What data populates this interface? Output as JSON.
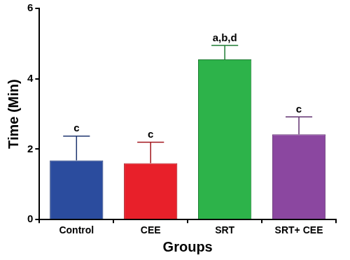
{
  "chart_data": {
    "type": "bar",
    "x_label": "Groups",
    "y_label": "Time (Min)",
    "categories": [
      "Control",
      "CEE",
      "SRT",
      "SRT+ CEE"
    ],
    "values": [
      1.68,
      1.6,
      4.55,
      2.42
    ],
    "errors": [
      0.69,
      0.6,
      0.4,
      0.5
    ],
    "annotations": [
      "c",
      "c",
      "a,b,d",
      "c"
    ],
    "colors": [
      "#2b4c9e",
      "#e8202a",
      "#2db34a",
      "#8b47a0"
    ],
    "ylim": [
      0,
      6
    ],
    "yticks": [
      0,
      2,
      4,
      6
    ],
    "grid": false
  }
}
